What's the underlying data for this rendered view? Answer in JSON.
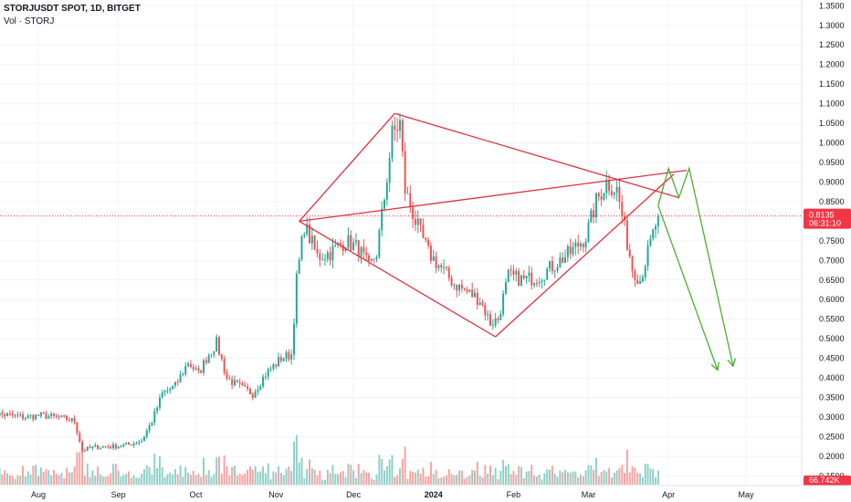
{
  "header": {
    "symbol_line": "STORJUSDT SPOT, 1D, BITGET",
    "vol_line": "Vol · STORJ"
  },
  "colors": {
    "up": "#26a69a",
    "down": "#ef5350",
    "up_vol": "#8fd0c8",
    "down_vol": "#f6a4a2",
    "pattern_line": "#e0313d",
    "projection_line": "#4caf32",
    "last_price_badge": "#f23645",
    "last_price_line": "#f23645"
  },
  "chart_data": {
    "type": "candlestick",
    "title": "STORJUSDT SPOT, 1D, BITGET",
    "x_axis_labels": [
      "Aug",
      "Sep",
      "Oct",
      "Nov",
      "Dec",
      "2024",
      "Feb",
      "Mar",
      "Apr",
      "May"
    ],
    "y_axis_ticks": [
      "1.3500",
      "1.3000",
      "1.2500",
      "1.2000",
      "1.1500",
      "1.1000",
      "1.0500",
      "1.0000",
      "0.9500",
      "0.9000",
      "0.8500",
      "0.7500",
      "0.7000",
      "0.6500",
      "0.6000",
      "0.5500",
      "0.5000",
      "0.4500",
      "0.4000",
      "0.3500",
      "0.3000",
      "0.2500",
      "0.2000",
      "0.1500"
    ],
    "ylim": [
      0.13,
      1.36
    ],
    "last_price": "0.8135",
    "countdown": "06:31:10",
    "volume_label": "66.742K",
    "price_path": [
      [
        "2023-07-13",
        0.31
      ],
      [
        "2023-07-20",
        0.305
      ],
      [
        "2023-07-27",
        0.3
      ],
      [
        "2023-08-02",
        0.305
      ],
      [
        "2023-08-07",
        0.3
      ],
      [
        "2023-08-12",
        0.295
      ],
      [
        "2023-08-15",
        0.29
      ],
      [
        "2023-08-18",
        0.215
      ],
      [
        "2023-08-24",
        0.225
      ],
      [
        "2023-08-30",
        0.225
      ],
      [
        "2023-09-05",
        0.23
      ],
      [
        "2023-09-10",
        0.24
      ],
      [
        "2023-09-14",
        0.29
      ],
      [
        "2023-09-18",
        0.36
      ],
      [
        "2023-09-23",
        0.38
      ],
      [
        "2023-09-28",
        0.44
      ],
      [
        "2023-10-02",
        0.41
      ],
      [
        "2023-10-05",
        0.45
      ],
      [
        "2023-10-09",
        0.49
      ],
      [
        "2023-10-13",
        0.4
      ],
      [
        "2023-10-17",
        0.38
      ],
      [
        "2023-10-23",
        0.36
      ],
      [
        "2023-10-28",
        0.41
      ],
      [
        "2023-11-03",
        0.45
      ],
      [
        "2023-11-07",
        0.46
      ],
      [
        "2023-11-09",
        0.65
      ],
      [
        "2023-11-12",
        0.79
      ],
      [
        "2023-11-17",
        0.71
      ],
      [
        "2023-11-22",
        0.72
      ],
      [
        "2023-11-28",
        0.75
      ],
      [
        "2023-12-03",
        0.73
      ],
      [
        "2023-12-07",
        0.68
      ],
      [
        "2023-12-10",
        0.72
      ],
      [
        "2023-12-13",
        0.86
      ],
      [
        "2023-12-16",
        1.02
      ],
      [
        "2023-12-19",
        1.05
      ],
      [
        "2023-12-21",
        0.88
      ],
      [
        "2023-12-25",
        0.8
      ],
      [
        "2023-12-30",
        0.72
      ],
      [
        "2024-01-04",
        0.68
      ],
      [
        "2024-01-09",
        0.64
      ],
      [
        "2024-01-14",
        0.62
      ],
      [
        "2024-01-19",
        0.6
      ],
      [
        "2024-01-23",
        0.54
      ],
      [
        "2024-01-26",
        0.55
      ],
      [
        "2024-01-30",
        0.66
      ],
      [
        "2024-02-05",
        0.65
      ],
      [
        "2024-02-11",
        0.66
      ],
      [
        "2024-02-17",
        0.69
      ],
      [
        "2024-02-23",
        0.72
      ],
      [
        "2024-02-29",
        0.76
      ],
      [
        "2024-03-04",
        0.85
      ],
      [
        "2024-03-08",
        0.9
      ],
      [
        "2024-03-12",
        0.88
      ],
      [
        "2024-03-15",
        0.78
      ],
      [
        "2024-03-18",
        0.68
      ],
      [
        "2024-03-21",
        0.65
      ],
      [
        "2024-03-24",
        0.72
      ],
      [
        "2024-03-28",
        0.814
      ]
    ],
    "annotations": {
      "pattern_lines": [
        [
          [
            "2023-11-10",
            0.8
          ],
          [
            "2023-12-17",
            1.075
          ]
        ],
        [
          [
            "2023-12-17",
            1.075
          ],
          [
            "2024-04-05",
            0.86
          ]
        ],
        [
          [
            "2023-11-10",
            0.8
          ],
          [
            "2024-01-25",
            0.505
          ]
        ],
        [
          [
            "2024-01-25",
            0.505
          ],
          [
            "2024-04-03",
            0.92
          ]
        ],
        [
          [
            "2023-11-10",
            0.8
          ],
          [
            "2024-04-08",
            0.93
          ]
        ]
      ],
      "projection_lines": [
        [
          [
            "2024-03-28",
            0.84
          ],
          [
            "2024-04-01",
            0.935
          ],
          [
            "2024-04-05",
            0.86
          ],
          [
            "2024-04-09",
            0.935
          ],
          [
            "2024-04-26",
            0.43
          ]
        ],
        [
          [
            "2024-03-28",
            0.84
          ],
          [
            "2024-04-20",
            0.42
          ]
        ]
      ]
    }
  }
}
